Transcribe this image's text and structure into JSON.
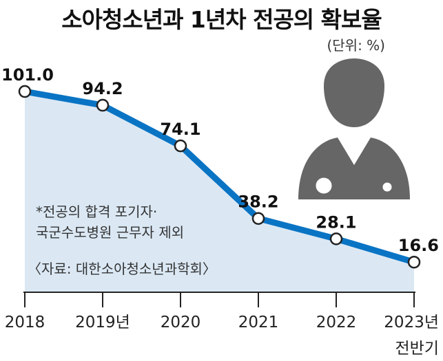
{
  "chart_data": {
    "type": "line",
    "title": "소아청소년과 1년차 전공의 확보율",
    "unit_note": "(단위: %)",
    "categories": [
      "2018",
      "2019년",
      "2020",
      "2021",
      "2022",
      "2023년\n전반기"
    ],
    "values": [
      101.0,
      94.2,
      74.1,
      38.2,
      28.1,
      16.6
    ],
    "value_labels": [
      "101.0",
      "94.2",
      "74.1",
      "38.2",
      "28.1",
      "16.6"
    ],
    "footnote_lines": [
      "*전공의 합격 포기자·",
      "국군수도병원 근무자 제외"
    ],
    "source": "〈자료: 대한소아청소년과학회〉",
    "ylim": [
      0,
      101
    ],
    "grid": false,
    "colors": {
      "line": "#0a74c4",
      "area": "#dbe8f4",
      "marker_fill": "#ffffff",
      "marker_stroke": "#222222",
      "icon": "#666666"
    },
    "icon": "doctor-stethoscope-icon"
  }
}
